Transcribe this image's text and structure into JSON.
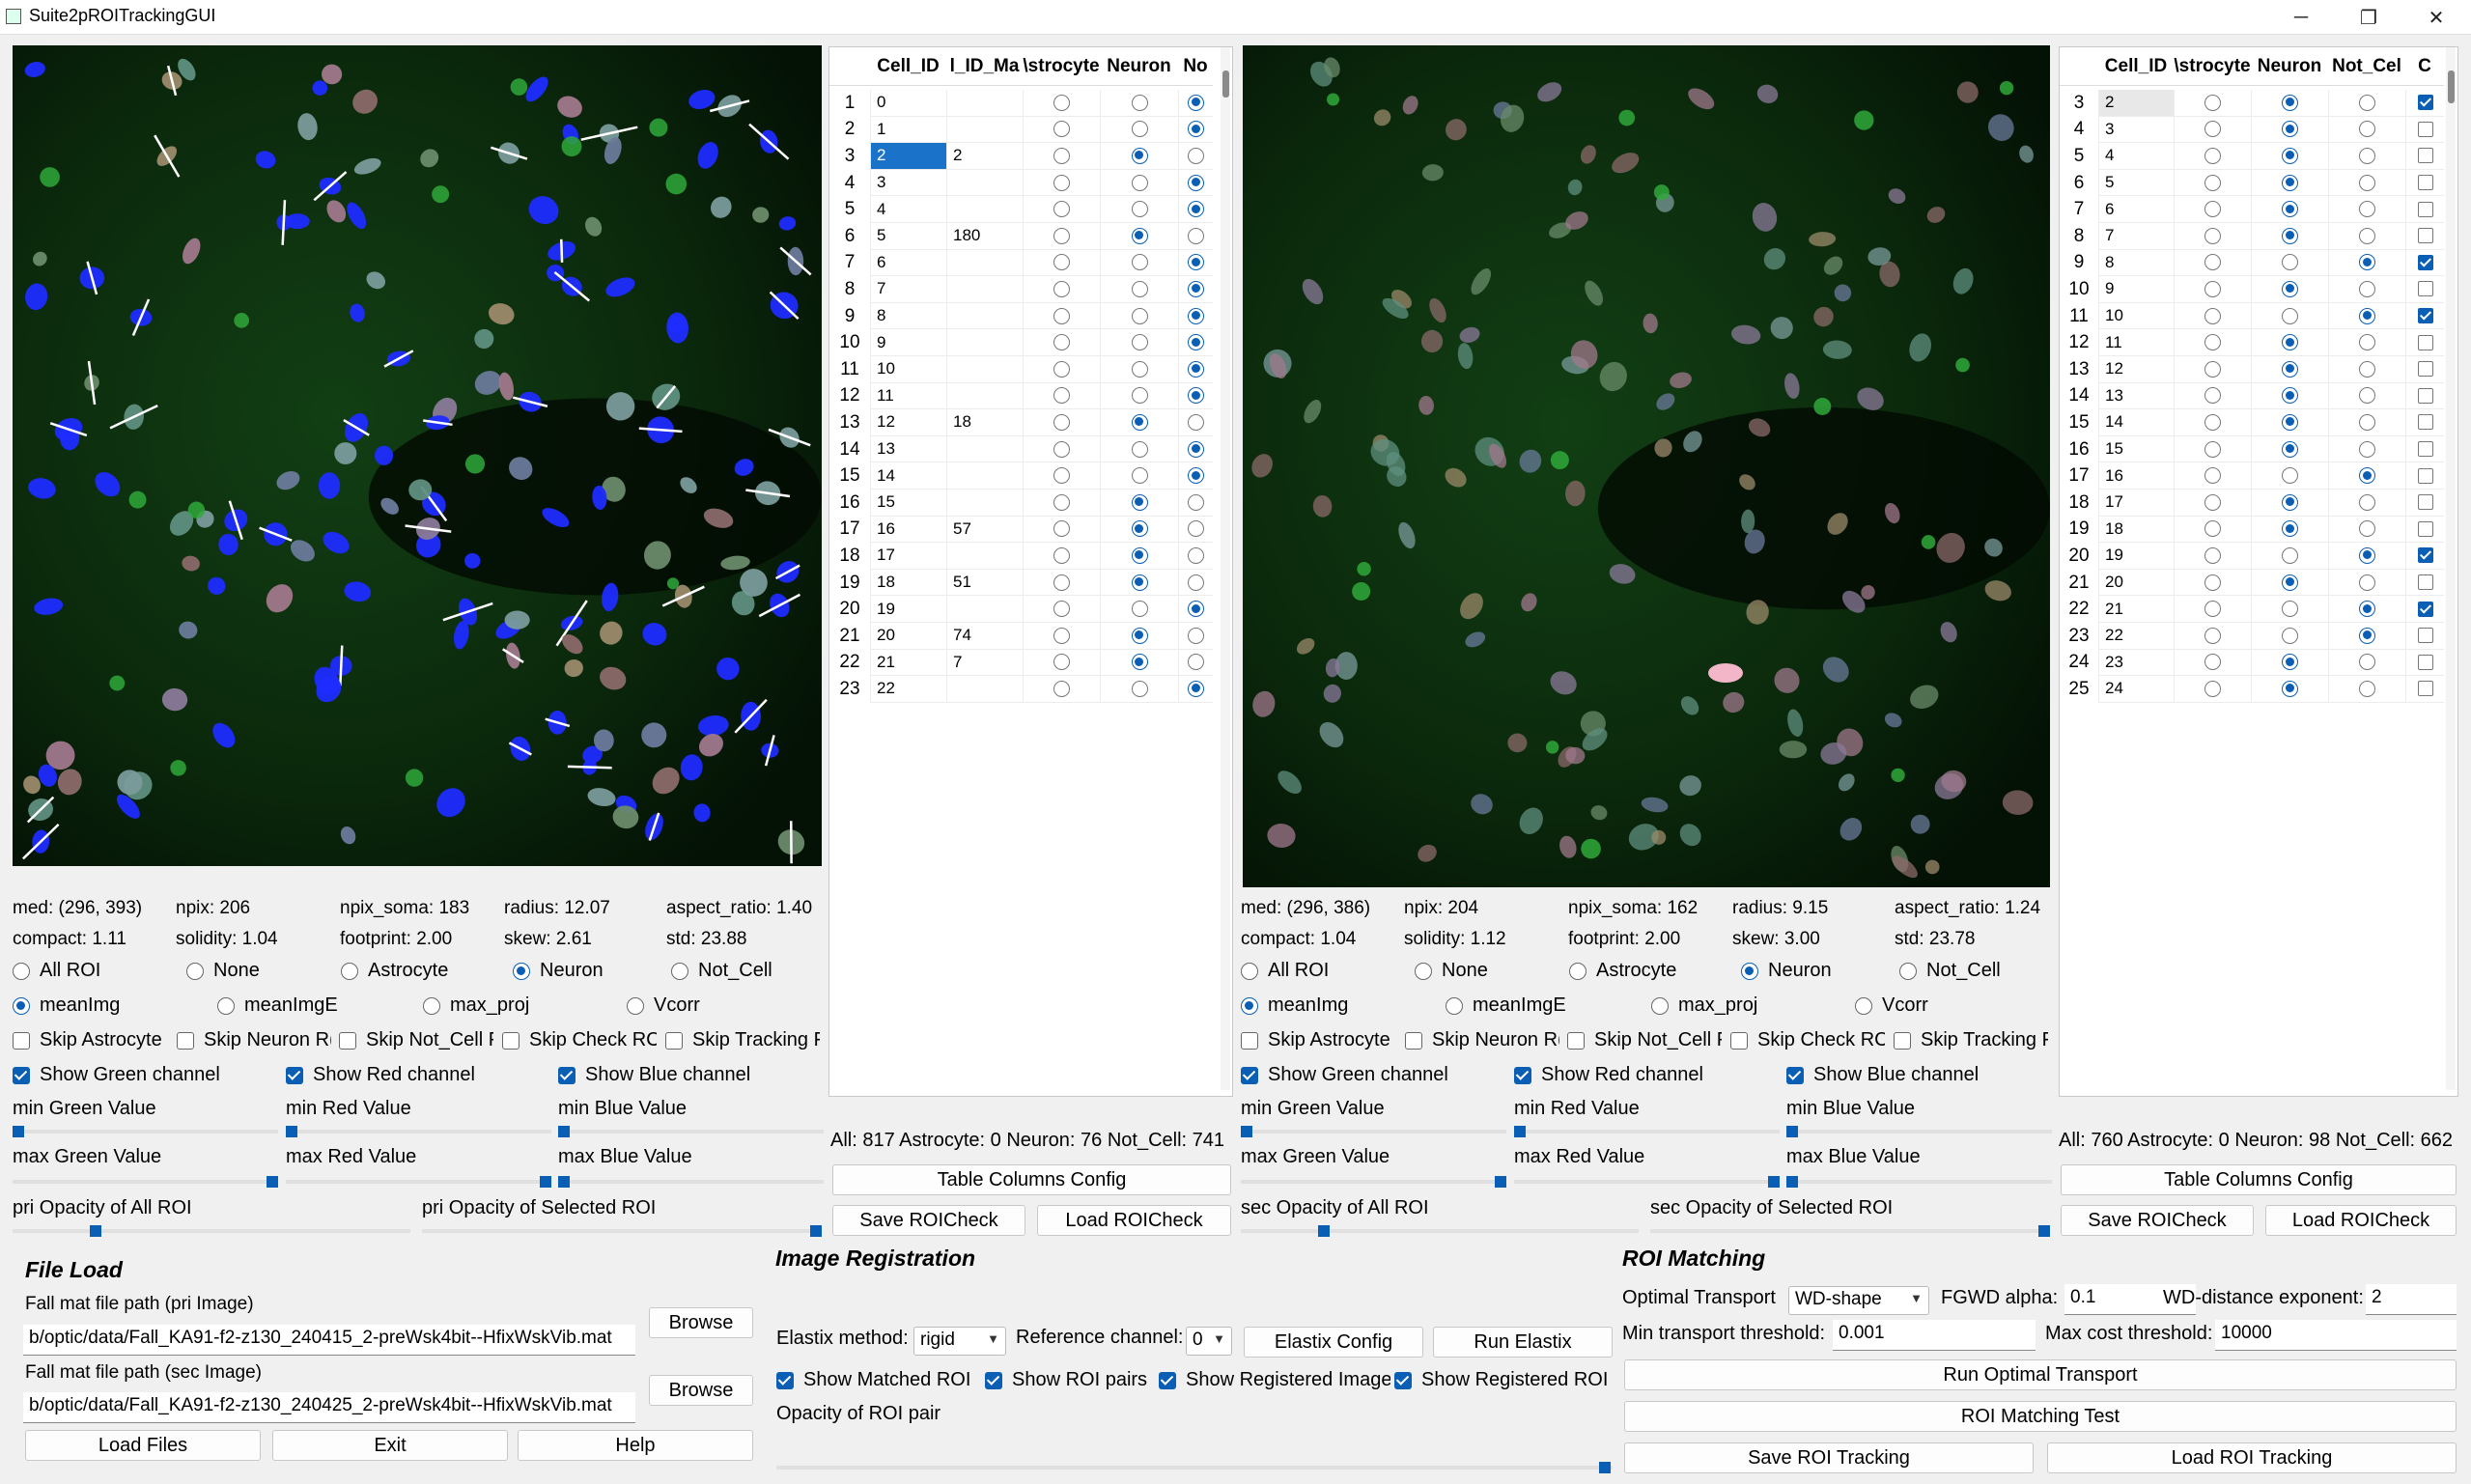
{
  "window": {
    "title": "Suite2pROITrackingGUI",
    "min_icon": "─",
    "max_icon": "❐",
    "close_icon": "✕"
  },
  "primary": {
    "stats": {
      "med": "med: (296, 393)",
      "npix": "npix: 206",
      "npix_soma": "npix_soma: 183",
      "radius": "radius: 12.07",
      "aspect_ratio": "aspect_ratio: 1.40",
      "compact": "compact: 1.11",
      "solidity": "solidity: 1.04",
      "footprint": "footprint: 2.00",
      "skew": "skew: 2.61",
      "std": "std: 23.88"
    },
    "roi_filter": [
      "All ROI",
      "None",
      "Astrocyte",
      "Neuron",
      "Not_Cell"
    ],
    "roi_filter_selected": 3,
    "bg_image": [
      "meanImg",
      "meanImgE",
      "max_proj",
      "Vcorr"
    ],
    "bg_selected": 0,
    "skips": [
      "Skip Astrocyte",
      "Skip Neuron R(",
      "Skip Not_Cell F",
      "Skip Check RC",
      "Skip Tracking F"
    ],
    "channels": [
      "Show Green channel",
      "Show Red channel",
      "Show Blue channel"
    ],
    "min_labels": [
      "min Green Value",
      "min Red Value",
      "min Blue Value"
    ],
    "max_labels": [
      "max Green Value",
      "max Red Value",
      "max Blue Value"
    ],
    "opacity_all": "pri Opacity of All ROI",
    "opacity_sel": "pri Opacity of Selected ROI",
    "table": {
      "headers": [
        "Cell_ID",
        "l_ID_Ma",
        "\\strocyte",
        "Neuron",
        "No"
      ],
      "rows": [
        {
          "n": "1",
          "id": "0",
          "match": "",
          "cls": 2
        },
        {
          "n": "2",
          "id": "1",
          "match": "",
          "cls": 2
        },
        {
          "n": "3",
          "id": "2",
          "match": "2",
          "cls": 1,
          "sel": true
        },
        {
          "n": "4",
          "id": "3",
          "match": "",
          "cls": 2
        },
        {
          "n": "5",
          "id": "4",
          "match": "",
          "cls": 2
        },
        {
          "n": "6",
          "id": "5",
          "match": "180",
          "cls": 1
        },
        {
          "n": "7",
          "id": "6",
          "match": "",
          "cls": 2
        },
        {
          "n": "8",
          "id": "7",
          "match": "",
          "cls": 2
        },
        {
          "n": "9",
          "id": "8",
          "match": "",
          "cls": 2
        },
        {
          "n": "10",
          "id": "9",
          "match": "",
          "cls": 2
        },
        {
          "n": "11",
          "id": "10",
          "match": "",
          "cls": 2
        },
        {
          "n": "12",
          "id": "11",
          "match": "",
          "cls": 2
        },
        {
          "n": "13",
          "id": "12",
          "match": "18",
          "cls": 1
        },
        {
          "n": "14",
          "id": "13",
          "match": "",
          "cls": 2
        },
        {
          "n": "15",
          "id": "14",
          "match": "",
          "cls": 2
        },
        {
          "n": "16",
          "id": "15",
          "match": "",
          "cls": 1
        },
        {
          "n": "17",
          "id": "16",
          "match": "57",
          "cls": 1
        },
        {
          "n": "18",
          "id": "17",
          "match": "",
          "cls": 1
        },
        {
          "n": "19",
          "id": "18",
          "match": "51",
          "cls": 1
        },
        {
          "n": "20",
          "id": "19",
          "match": "",
          "cls": 2
        },
        {
          "n": "21",
          "id": "20",
          "match": "74",
          "cls": 1
        },
        {
          "n": "22",
          "id": "21",
          "match": "7",
          "cls": 1
        },
        {
          "n": "23",
          "id": "22",
          "match": "",
          "cls": 2
        }
      ],
      "summary": "All: 817  Astrocyte: 0  Neuron: 76  Not_Cell: 741",
      "config_btn": "Table Columns Config",
      "save_btn": "Save ROICheck",
      "load_btn": "Load ROICheck"
    }
  },
  "secondary": {
    "stats": {
      "med": "med: (296, 386)",
      "npix": "npix: 204",
      "npix_soma": "npix_soma: 162",
      "radius": "radius: 9.15",
      "aspect_ratio": "aspect_ratio: 1.24",
      "compact": "compact: 1.04",
      "solidity": "solidity: 1.12",
      "footprint": "footprint: 2.00",
      "skew": "skew: 3.00",
      "std": "std: 23.78"
    },
    "roi_filter": [
      "All ROI",
      "None",
      "Astrocyte",
      "Neuron",
      "Not_Cell"
    ],
    "roi_filter_selected": 3,
    "bg_image": [
      "meanImg",
      "meanImgE",
      "max_proj",
      "Vcorr"
    ],
    "bg_selected": 0,
    "skips": [
      "Skip Astrocyte",
      "Skip Neuron R(",
      "Skip Not_Cell F",
      "Skip Check RC",
      "Skip Tracking F"
    ],
    "channels": [
      "Show Green channel",
      "Show Red channel",
      "Show Blue channel"
    ],
    "min_labels": [
      "min Green Value",
      "min Red Value",
      "min Blue Value"
    ],
    "max_labels": [
      "max Green Value",
      "max Red Value",
      "max Blue Value"
    ],
    "opacity_all": "sec Opacity of All ROI",
    "opacity_sel": "sec Opacity of Selected ROI",
    "table": {
      "headers": [
        "Cell_ID",
        "\\strocyte",
        "Neuron",
        "Not_Cel",
        "C"
      ],
      "rows": [
        {
          "n": "3",
          "id": "2",
          "cls": 1,
          "chk": true,
          "sel": true
        },
        {
          "n": "4",
          "id": "3",
          "cls": 1,
          "chk": false
        },
        {
          "n": "5",
          "id": "4",
          "cls": 1,
          "chk": false
        },
        {
          "n": "6",
          "id": "5",
          "cls": 1,
          "chk": false
        },
        {
          "n": "7",
          "id": "6",
          "cls": 1,
          "chk": false
        },
        {
          "n": "8",
          "id": "7",
          "cls": 1,
          "chk": false
        },
        {
          "n": "9",
          "id": "8",
          "cls": 2,
          "chk": true
        },
        {
          "n": "10",
          "id": "9",
          "cls": 1,
          "chk": false
        },
        {
          "n": "11",
          "id": "10",
          "cls": 2,
          "chk": true
        },
        {
          "n": "12",
          "id": "11",
          "cls": 1,
          "chk": false
        },
        {
          "n": "13",
          "id": "12",
          "cls": 1,
          "chk": false
        },
        {
          "n": "14",
          "id": "13",
          "cls": 1,
          "chk": false
        },
        {
          "n": "15",
          "id": "14",
          "cls": 1,
          "chk": false
        },
        {
          "n": "16",
          "id": "15",
          "cls": 1,
          "chk": false
        },
        {
          "n": "17",
          "id": "16",
          "cls": 2,
          "chk": false
        },
        {
          "n": "18",
          "id": "17",
          "cls": 1,
          "chk": false
        },
        {
          "n": "19",
          "id": "18",
          "cls": 1,
          "chk": false
        },
        {
          "n": "20",
          "id": "19",
          "cls": 2,
          "chk": true
        },
        {
          "n": "21",
          "id": "20",
          "cls": 1,
          "chk": false
        },
        {
          "n": "22",
          "id": "21",
          "cls": 2,
          "chk": true
        },
        {
          "n": "23",
          "id": "22",
          "cls": 2,
          "chk": false
        },
        {
          "n": "24",
          "id": "23",
          "cls": 1,
          "chk": false
        },
        {
          "n": "25",
          "id": "24",
          "cls": 1,
          "chk": false
        }
      ],
      "summary": "All: 760  Astrocyte: 0  Neuron: 98  Not_Cell: 662",
      "config_btn": "Table Columns Config",
      "save_btn": "Save ROICheck",
      "load_btn": "Load ROICheck"
    }
  },
  "file_load": {
    "title": "File Load",
    "pri_label": "Fall mat file path (pri Image)",
    "pri_path": "b/optic/data/Fall_KA91-f2-z130_240415_2-preWsk4bit--HfixWskVib.mat",
    "sec_label": "Fall mat file path (sec Image)",
    "sec_path": "b/optic/data/Fall_KA91-f2-z130_240425_2-preWsk4bit--HfixWskVib.mat",
    "browse": "Browse",
    "load_files": "Load Files",
    "exit": "Exit",
    "help": "Help"
  },
  "registration": {
    "title": "Image Registration",
    "method_label": "Elastix method:",
    "method_value": "rigid",
    "ref_label": "Reference channel:",
    "ref_value": "0",
    "config_btn": "Elastix Config",
    "run_btn": "Run Elastix",
    "checks": [
      "Show Matched ROI",
      "Show ROI pairs",
      "Show Registered Image",
      "Show Registered ROI"
    ],
    "opacity_label": "Opacity of ROI pair"
  },
  "matching": {
    "title": "ROI Matching",
    "ot_label": "Optimal Transport",
    "ot_value": "WD-shape",
    "fgwd_label": "FGWD alpha:",
    "fgwd_value": "0.1",
    "wd_label": "WD-distance exponent:",
    "wd_value": "2",
    "min_label": "Min transport threshold:",
    "min_value": "0.001",
    "max_label": "Max cost threshold:",
    "max_value": "10000",
    "run_ot": "Run Optimal Transport",
    "test_btn": "ROI Matching Test",
    "save_btn": "Save ROI Tracking",
    "load_btn": "Load ROI Tracking"
  },
  "colors": {
    "accent": "#0a5fb4",
    "image_bg": "#000000",
    "roi_blue": "#1f2cff",
    "tissue_green": "#0f3a12"
  },
  "icons": {
    "dropdown": "chevron-down-icon"
  }
}
